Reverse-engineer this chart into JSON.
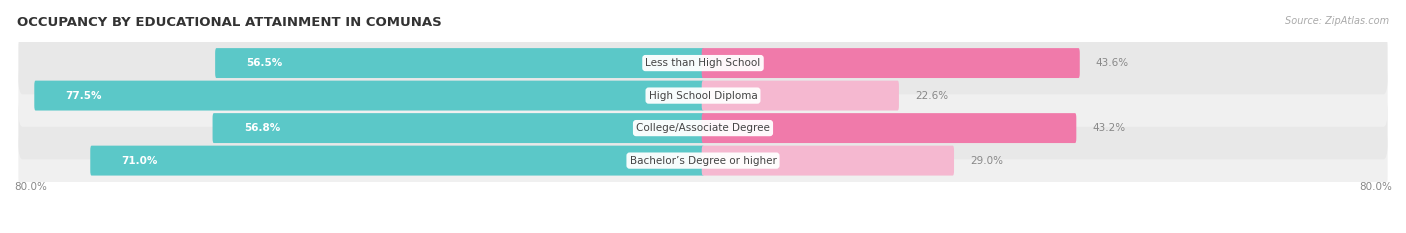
{
  "title": "OCCUPANCY BY EDUCATIONAL ATTAINMENT IN COMUNAS",
  "source": "Source: ZipAtlas.com",
  "categories": [
    "Less than High School",
    "High School Diploma",
    "College/Associate Degree",
    "Bachelor’s Degree or higher"
  ],
  "owner_values": [
    56.5,
    77.5,
    56.8,
    71.0
  ],
  "renter_values": [
    43.6,
    22.6,
    43.2,
    29.0
  ],
  "owner_color": "#5bc8c8",
  "renter_color": "#f07aaa",
  "renter_color_light": "#f5b8d0",
  "background_color": "#ffffff",
  "row_bg_colors": [
    "#e8e8e8",
    "#f0f0f0",
    "#e8e8e8",
    "#f0f0f0"
  ],
  "xlim_left": -80.0,
  "xlim_right": 80.0,
  "axis_label_left": "80.0%",
  "axis_label_right": "80.0%",
  "title_fontsize": 9.5,
  "source_fontsize": 7,
  "bar_label_fontsize": 7.5,
  "category_fontsize": 7.5,
  "bar_height": 0.62
}
